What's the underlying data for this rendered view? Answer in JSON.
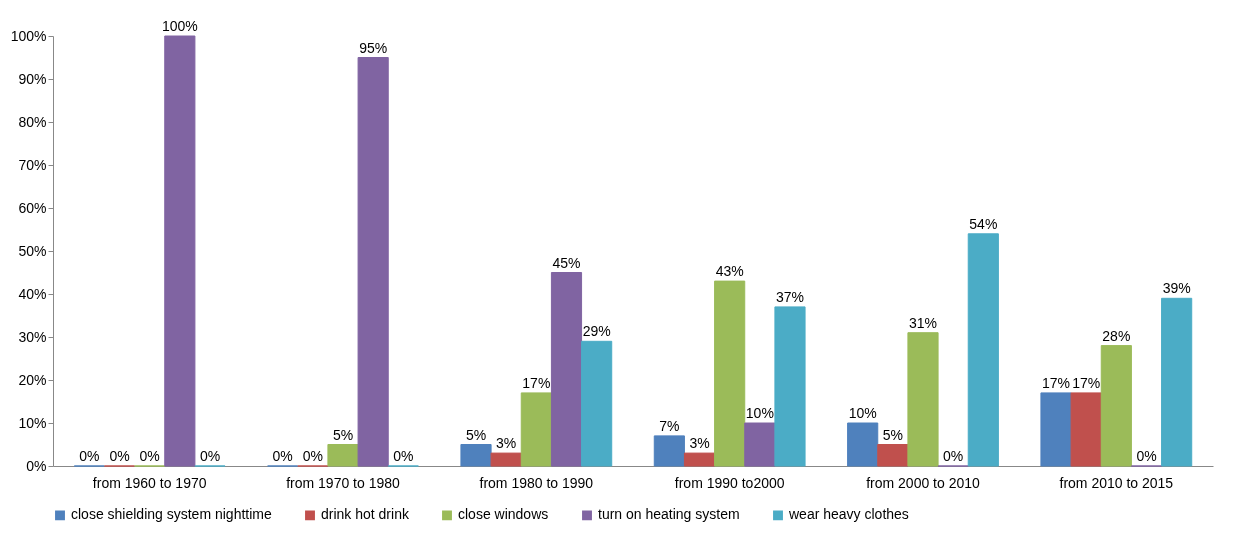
{
  "chart_data": {
    "type": "bar",
    "categories": [
      "from 1960 to 1970",
      "from 1970 to 1980",
      "from 1980 to 1990",
      "from 1990 to2000",
      "from 2000 to 2010",
      "from 2010 to 2015"
    ],
    "series": [
      {
        "name": "close shielding system nighttime",
        "color": "#4f81bd",
        "values": [
          0,
          0,
          5,
          7,
          10,
          17
        ],
        "value_labels": [
          "0%",
          "0%",
          "5%",
          "7%",
          "10%",
          "17%"
        ]
      },
      {
        "name": "drink hot drink",
        "color": "#c0504d",
        "values": [
          0,
          0,
          3,
          3,
          5,
          17
        ],
        "value_labels": [
          "0%",
          "0%",
          "3%",
          "3%",
          "5%",
          "17%"
        ]
      },
      {
        "name": "close windows",
        "color": "#9bbb59",
        "values": [
          0,
          5,
          17,
          43,
          31,
          28
        ],
        "value_labels": [
          "0%",
          "5%",
          "17%",
          "43%",
          "31%",
          "28%"
        ]
      },
      {
        "name": "turn on heating system",
        "color": "#8064a2",
        "values": [
          100,
          95,
          45,
          10,
          0,
          0
        ],
        "value_labels": [
          "100%",
          "95%",
          "45%",
          "10%",
          "0%",
          "0%"
        ]
      },
      {
        "name": "wear heavy clothes",
        "color": "#4bacc6",
        "values": [
          0,
          0,
          29,
          37,
          54,
          39
        ],
        "value_labels": [
          "0%",
          "0%",
          "29%",
          "37%",
          "54%",
          "39%"
        ]
      }
    ],
    "ylim": [
      0,
      100
    ],
    "yticks": [
      {
        "value": 0,
        "label": "0%"
      },
      {
        "value": 10,
        "label": "10%"
      },
      {
        "value": 20,
        "label": "20%"
      },
      {
        "value": 30,
        "label": "30%"
      },
      {
        "value": 40,
        "label": "40%"
      },
      {
        "value": 50,
        "label": "50%"
      },
      {
        "value": 60,
        "label": "60%"
      },
      {
        "value": 70,
        "label": "70%"
      },
      {
        "value": 80,
        "label": "80%"
      },
      {
        "value": 90,
        "label": "90%"
      },
      {
        "value": 100,
        "label": "100%"
      }
    ],
    "grid": false,
    "legend": "bottom"
  }
}
